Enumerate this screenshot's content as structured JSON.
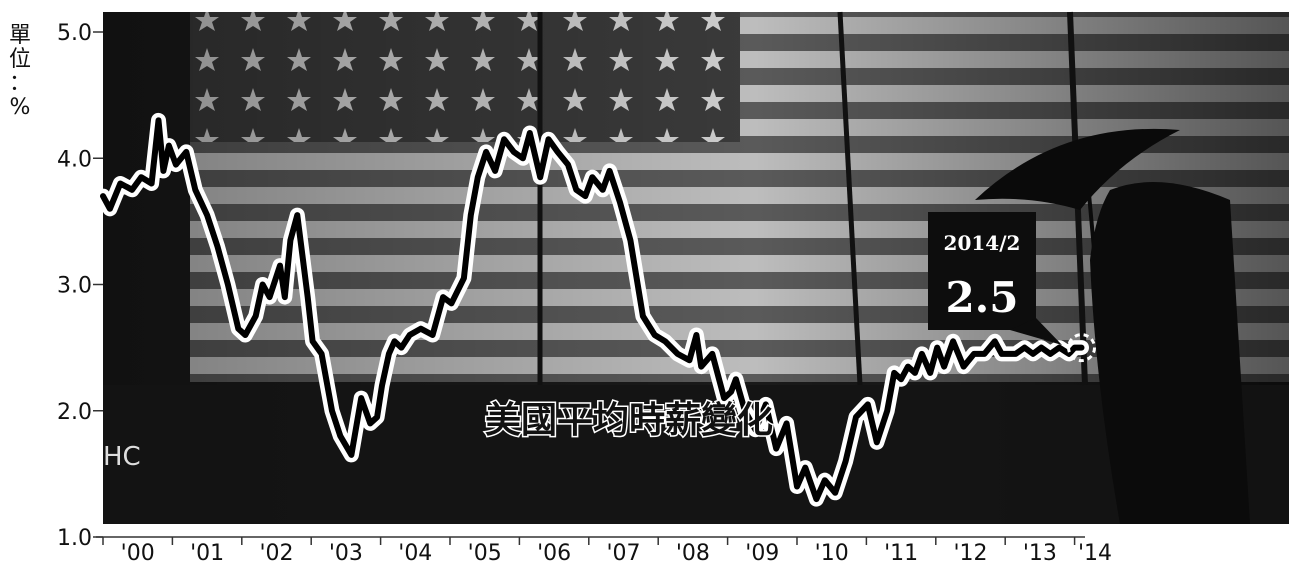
{
  "chart_data": {
    "type": "line",
    "title": "美國平均時薪變化",
    "unit_label": [
      "單",
      "位",
      "：",
      "%"
    ],
    "ylim": [
      1.0,
      5.0
    ],
    "yticks": [
      "1.0",
      "2.0",
      "3.0",
      "4.0",
      "5.0"
    ],
    "xticks": [
      "'00",
      "'01",
      "'02",
      "'03",
      "'04",
      "'05",
      "'06",
      "'07",
      "'08",
      "'09",
      "'10",
      "'11",
      "'12",
      "'13",
      "'14"
    ],
    "xlim": [
      2000.0,
      2014.15
    ],
    "grid": false,
    "series": [
      {
        "x": [
          2000.0,
          2000.1,
          2000.25,
          2000.42,
          2000.55,
          2000.7,
          2000.8,
          2000.87,
          2000.95,
          2001.05,
          2001.2,
          2001.33,
          2001.5,
          2001.65,
          2001.8,
          2001.95,
          2002.05,
          2002.2,
          2002.3,
          2002.4,
          2002.55,
          2002.62,
          2002.7,
          2002.8,
          2002.88,
          2002.95,
          2003.02,
          2003.15,
          2003.3,
          2003.42,
          2003.58,
          2003.72,
          2003.85,
          2003.95,
          2004.02,
          2004.12,
          2004.2,
          2004.3,
          2004.42,
          2004.58,
          2004.75,
          2004.9,
          2005.02,
          2005.2,
          2005.3,
          2005.4,
          2005.52,
          2005.65,
          2005.78,
          2005.92,
          2006.05,
          2006.15,
          2006.3,
          2006.42,
          2006.55,
          2006.7,
          2006.82,
          2006.95,
          2007.05,
          2007.2,
          2007.3,
          2007.45,
          2007.6,
          2007.78,
          2007.95,
          2008.1,
          2008.28,
          2008.45,
          2008.55,
          2008.62,
          2008.78,
          2008.95,
          2009.05,
          2009.12,
          2009.25,
          2009.4,
          2009.55,
          2009.7,
          2009.85,
          2010.0,
          2010.12,
          2010.28,
          2010.4,
          2010.55,
          2010.7,
          2010.85,
          2011.02,
          2011.15,
          2011.3,
          2011.4,
          2011.5,
          2011.6,
          2011.7,
          2011.8,
          2011.92,
          2012.02,
          2012.12,
          2012.25,
          2012.4,
          2012.55,
          2012.7,
          2012.85,
          2012.95,
          2013.05,
          2013.15,
          2013.28,
          2013.4,
          2013.52,
          2013.65,
          2013.78,
          2013.92,
          2014.0,
          2014.1
        ],
        "y": [
          3.7,
          3.6,
          3.8,
          3.75,
          3.85,
          3.8,
          4.3,
          3.9,
          4.1,
          3.95,
          4.05,
          3.75,
          3.55,
          3.3,
          3.0,
          2.65,
          2.6,
          2.75,
          3.0,
          2.9,
          3.15,
          2.9,
          3.35,
          3.55,
          3.2,
          2.9,
          2.55,
          2.45,
          2.0,
          1.8,
          1.65,
          2.1,
          1.9,
          1.95,
          2.2,
          2.45,
          2.55,
          2.5,
          2.6,
          2.65,
          2.6,
          2.9,
          2.85,
          3.05,
          3.55,
          3.85,
          4.05,
          3.9,
          4.15,
          4.05,
          4.0,
          4.2,
          3.85,
          4.15,
          4.05,
          3.95,
          3.75,
          3.7,
          3.85,
          3.75,
          3.9,
          3.65,
          3.35,
          2.75,
          2.6,
          2.55,
          2.45,
          2.4,
          2.6,
          2.35,
          2.45,
          2.1,
          2.15,
          2.25,
          2.0,
          1.85,
          2.05,
          1.7,
          1.9,
          1.4,
          1.55,
          1.3,
          1.45,
          1.35,
          1.6,
          1.95,
          2.05,
          1.75,
          2.0,
          2.3,
          2.25,
          2.35,
          2.3,
          2.45,
          2.3,
          2.5,
          2.35,
          2.55,
          2.35,
          2.45,
          2.45,
          2.55,
          2.45,
          2.45,
          2.45,
          2.5,
          2.45,
          2.5,
          2.45,
          2.5,
          2.45,
          2.5,
          2.5
        ]
      }
    ],
    "callout": {
      "date": "2014/2",
      "value": "2.5"
    },
    "watermark": "HC"
  }
}
